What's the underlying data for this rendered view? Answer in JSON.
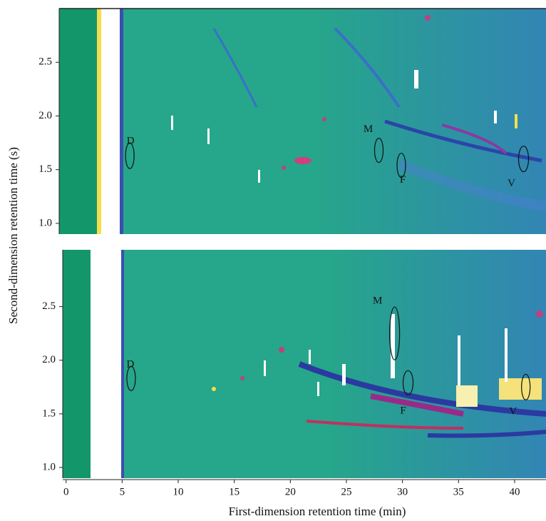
{
  "y_axis_label": "Second-dimension retention time (s)",
  "x_axis_label": "First-dimension retention time (min)",
  "chart_data": [
    {
      "type": "contour",
      "xlim": [
        -0.6,
        42.8
      ],
      "ylim": [
        0.9,
        3.0
      ],
      "yticks": [
        {
          "value": 1,
          "label": "1.0"
        },
        1.5,
        {
          "value": 2,
          "label": "2.0"
        },
        2.5
      ],
      "annotations": [
        {
          "text": "D",
          "x": 5.7,
          "y": 1.63
        },
        {
          "text": "M",
          "x": 27.9,
          "y": 1.68
        },
        {
          "text": "F",
          "x": 29.9,
          "y": 1.54
        },
        {
          "text": "V",
          "x": 40.8,
          "y": 1.6
        }
      ]
    },
    {
      "type": "contour",
      "xlim": [
        -0.3,
        42.8
      ],
      "ylim": [
        0.9,
        3.03
      ],
      "xticks": [
        0,
        5,
        10,
        15,
        20,
        25,
        30,
        35,
        40
      ],
      "yticks": [
        {
          "value": 1,
          "label": "1.0"
        },
        1.5,
        {
          "value": 2,
          "label": "2.0"
        },
        2.5
      ],
      "annotations": [
        {
          "text": "D",
          "x": 5.8,
          "y": 1.83
        },
        {
          "text": "M",
          "x": 29.3,
          "y": 2.25
        },
        {
          "text": "F",
          "x": 30.5,
          "y": 1.79
        },
        {
          "text": "V",
          "x": 41.0,
          "y": 1.75
        }
      ]
    }
  ]
}
